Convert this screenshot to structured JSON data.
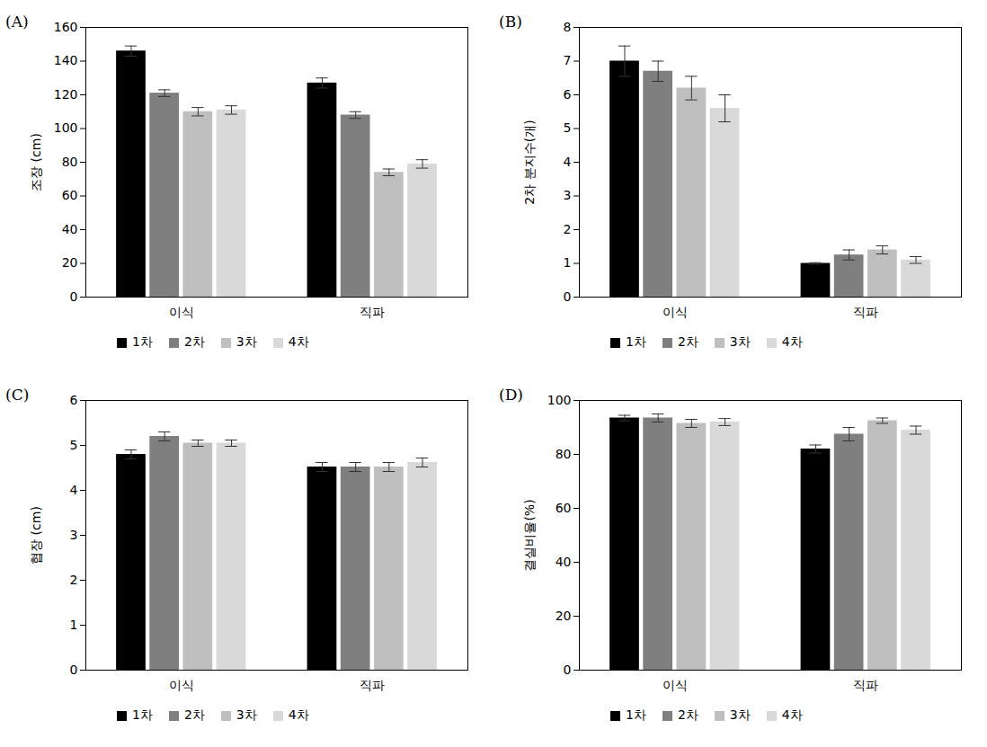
{
  "chart_data": [
    {
      "type": "bar",
      "title": "(A)",
      "ylabel": "조장 (cm)",
      "categories": [
        "이식",
        "직파"
      ],
      "series": [
        {
          "name": "1차",
          "color": "#000000",
          "values": [
            146,
            127
          ],
          "errors": [
            3,
            3
          ]
        },
        {
          "name": "2차",
          "color": "#7f7f7f",
          "values": [
            121,
            108
          ],
          "errors": [
            2,
            2
          ]
        },
        {
          "name": "3차",
          "color": "#bfbfbf",
          "values": [
            110,
            74
          ],
          "errors": [
            2.5,
            2
          ]
        },
        {
          "name": "4차",
          "color": "#d9d9d9",
          "values": [
            111,
            79
          ],
          "errors": [
            2.5,
            2.5
          ]
        }
      ],
      "ylim": [
        0,
        160
      ],
      "yticks": [
        0,
        20,
        40,
        60,
        80,
        100,
        120,
        140,
        160
      ],
      "grid": false,
      "legend": "bottom"
    },
    {
      "type": "bar",
      "title": "(B)",
      "ylabel": "2차 분지수(개)",
      "categories": [
        "이식",
        "직파"
      ],
      "series": [
        {
          "name": "1차",
          "color": "#000000",
          "values": [
            7.0,
            1.0
          ],
          "errors": [
            0.45,
            0.02
          ]
        },
        {
          "name": "2차",
          "color": "#7f7f7f",
          "values": [
            6.7,
            1.25
          ],
          "errors": [
            0.3,
            0.15
          ]
        },
        {
          "name": "3차",
          "color": "#bfbfbf",
          "values": [
            6.2,
            1.4
          ],
          "errors": [
            0.35,
            0.12
          ]
        },
        {
          "name": "4차",
          "color": "#d9d9d9",
          "values": [
            5.6,
            1.1
          ],
          "errors": [
            0.4,
            0.1
          ]
        }
      ],
      "ylim": [
        0,
        8
      ],
      "yticks": [
        0,
        1,
        2,
        3,
        4,
        5,
        6,
        7,
        8
      ],
      "grid": false,
      "legend": "bottom"
    },
    {
      "type": "bar",
      "title": "(C)",
      "ylabel": "협장 (cm)",
      "categories": [
        "이식",
        "직파"
      ],
      "series": [
        {
          "name": "1차",
          "color": "#000000",
          "values": [
            4.8,
            4.52
          ],
          "errors": [
            0.1,
            0.1
          ]
        },
        {
          "name": "2차",
          "color": "#7f7f7f",
          "values": [
            5.2,
            4.52
          ],
          "errors": [
            0.1,
            0.1
          ]
        },
        {
          "name": "3차",
          "color": "#bfbfbf",
          "values": [
            5.05,
            4.52
          ],
          "errors": [
            0.07,
            0.1
          ]
        },
        {
          "name": "4차",
          "color": "#d9d9d9",
          "values": [
            5.05,
            4.62
          ],
          "errors": [
            0.07,
            0.1
          ]
        }
      ],
      "ylim": [
        0,
        6
      ],
      "yticks": [
        0,
        1,
        2,
        3,
        4,
        5,
        6
      ],
      "grid": false,
      "legend": "bottom"
    },
    {
      "type": "bar",
      "title": "(D)",
      "ylabel": "결실비율(%)",
      "categories": [
        "이식",
        "직파"
      ],
      "series": [
        {
          "name": "1차",
          "color": "#000000",
          "values": [
            93.5,
            82
          ],
          "errors": [
            1,
            1.5
          ]
        },
        {
          "name": "2차",
          "color": "#7f7f7f",
          "values": [
            93.5,
            87.5
          ],
          "errors": [
            1.5,
            2.5
          ]
        },
        {
          "name": "3차",
          "color": "#bfbfbf",
          "values": [
            91.5,
            92.5
          ],
          "errors": [
            1.5,
            1
          ]
        },
        {
          "name": "4차",
          "color": "#d9d9d9",
          "values": [
            92,
            89
          ],
          "errors": [
            1.3,
            1.5
          ]
        }
      ],
      "ylim": [
        0,
        100
      ],
      "yticks": [
        0,
        20,
        40,
        60,
        80,
        100
      ],
      "grid": false,
      "legend": "bottom"
    }
  ]
}
